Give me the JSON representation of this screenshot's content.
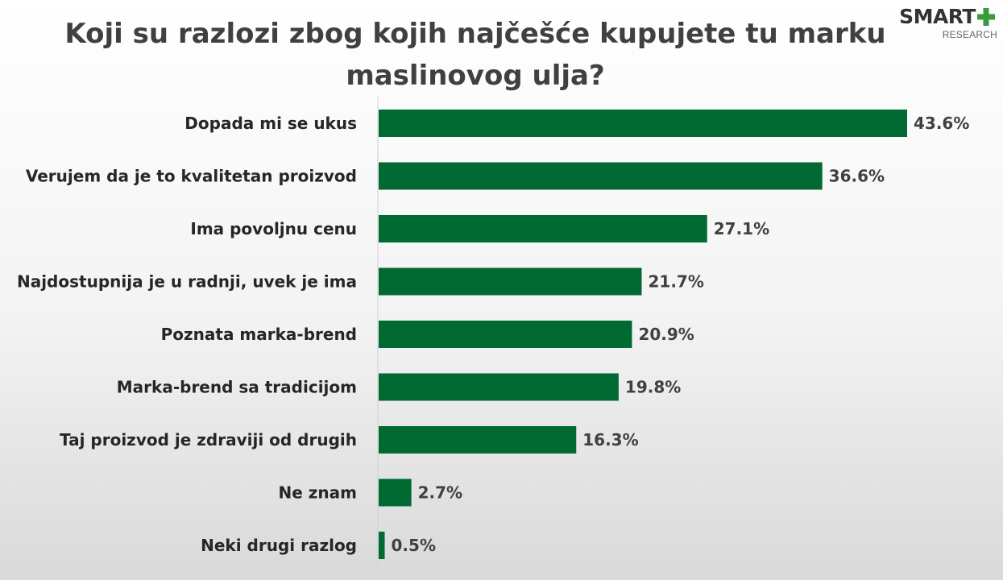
{
  "brand": {
    "logo_text": "SMART",
    "logo_sub": "RESEARCH",
    "accent_color": "#3a9b3c"
  },
  "chart_data": {
    "type": "bar",
    "orientation": "horizontal",
    "title": "Koji su razlozi zbog kojih najčešće kupujete tu marku maslinovog ulja?",
    "title_lines": [
      "Koji su razlozi zbog kojih najčešće kupujete tu marku",
      "maslinovog ulja?"
    ],
    "categories": [
      "Dopada mi se ukus",
      "Verujem da je to kvalitetan proizvod",
      "Ima povoljnu cenu",
      "Najdostupnija je u radnji, uvek je ima",
      "Poznata marka-brend",
      "Marka-brend sa tradicijom",
      "Taj proizvod je zdraviji od drugih",
      "Ne znam",
      "Neki drugi razlog"
    ],
    "values": [
      43.6,
      36.6,
      27.1,
      21.7,
      20.9,
      19.8,
      16.3,
      2.7,
      0.5
    ],
    "value_labels": [
      "43.6%",
      "36.6%",
      "27.1%",
      "21.7%",
      "20.9%",
      "19.8%",
      "16.3%",
      "2.7%",
      "0.5%"
    ],
    "unit": "%",
    "xlim": [
      0,
      50
    ],
    "bar_color": "#006a32",
    "grid": false,
    "legend": "none"
  }
}
